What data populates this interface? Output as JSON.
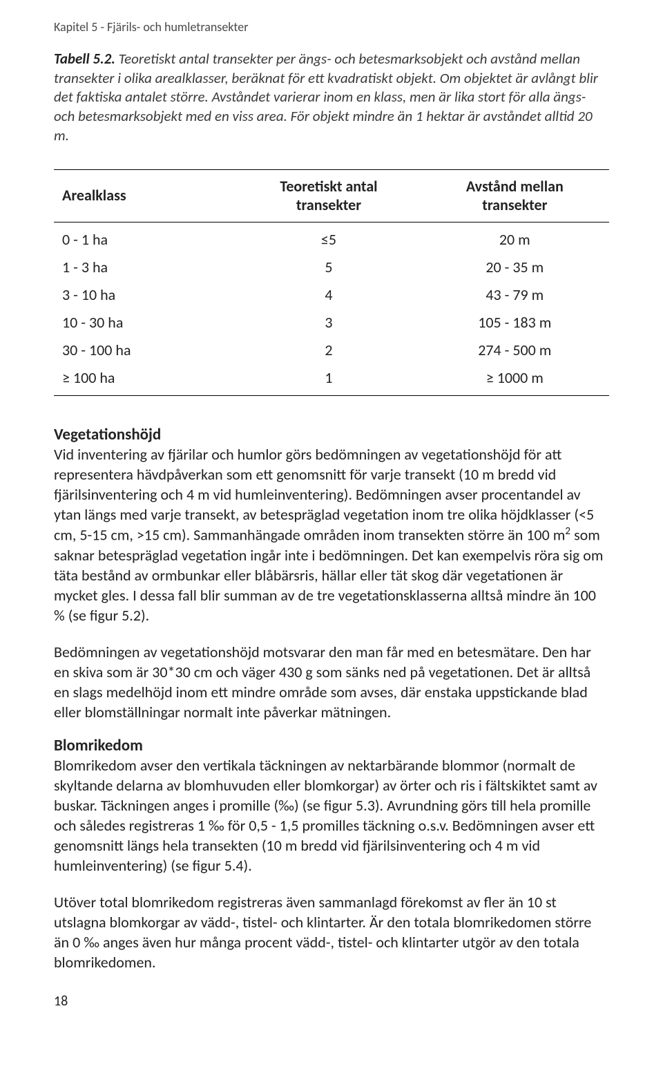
{
  "chapter_header": "Kapitel 5 -  Fjärils- och humletransekter",
  "table_label": "Tabell 5.2.",
  "table_caption": " Teoretiskt antal transekter per ängs- och betesmarksobjekt och avstånd mellan transekter i olika arealklasser, beräknat för ett kvadratiskt objekt. Om objektet är avlångt blir det faktiska antalet större. Avståndet varierar inom en klass, men är lika stort för alla ängs- och betesmarksobjekt med en viss area. För objekt mindre än 1 hektar är avståndet alltid 20 m.",
  "table": {
    "type": "table",
    "columns": [
      {
        "key": "arealklass",
        "header": "Arealklass",
        "align": "left"
      },
      {
        "key": "teoretiskt",
        "header": "Teoretiskt antal\ntransekter",
        "align": "center"
      },
      {
        "key": "avstand",
        "header": "Avstånd mellan\ntransekter",
        "align": "center"
      }
    ],
    "rows": [
      {
        "arealklass": "0 - 1 ha",
        "teoretiskt": "≤5",
        "avstand": "20 m"
      },
      {
        "arealklass": "1 - 3 ha",
        "teoretiskt": "5",
        "avstand": "20 - 35 m"
      },
      {
        "arealklass": "3 - 10 ha",
        "teoretiskt": "4",
        "avstand": "43 - 79 m"
      },
      {
        "arealklass": "10 - 30 ha",
        "teoretiskt": "3",
        "avstand": "105 - 183 m"
      },
      {
        "arealklass": "30 - 100 ha",
        "teoretiskt": "2",
        "avstand": "274 - 500 m"
      },
      {
        "arealklass": "≥ 100 ha",
        "teoretiskt": "1",
        "avstand": "≥ 1000 m"
      }
    ],
    "border_color": "#000000",
    "font_size": 22,
    "header_font_weight": "bold"
  },
  "sections": {
    "vegetation": {
      "heading": "Vegetationshöjd",
      "para1": "Vid inventering av fjärilar och humlor görs bedömningen av vegetationshöjd för att representera hävdpåverkan som ett genomsnitt för varje transekt (10 m bredd vid fjärilsinventering och 4 m vid humleinventering). Bedömningen avser procentandel av ytan längs med varje transekt, av betespräglad vegetation inom tre olika höjdklasser (<5 cm, 5-15 cm, >15 cm). Sammanhängade områden inom transekten större än 100 m² som saknar betespräglad vegetation ingår inte i bedömningen. Det kan exempelvis röra sig om täta bestånd av ormbunkar eller blåbärsris, hällar eller tät skog där vegetationen är mycket gles. I dessa fall blir summan av de tre vegetationsklasserna alltså mindre än 100 % (se figur 5.2).",
      "para2": "Bedömningen av vegetationshöjd motsvarar den man får med en betesmätare. Den har en skiva som är 30*30 cm och väger 430 g som sänks ned på vegetationen. Det är alltså en slags medelhöjd inom ett mindre område som avses, där enstaka uppstickande blad eller blomställningar normalt inte påverkar mätningen."
    },
    "blomrikedom": {
      "heading": "Blomrikedom",
      "para1": "Blomrikedom avser den vertikala täckningen av nektarbärande blommor (normalt de skyltande delarna av blomhuvuden eller blomkorgar) av örter och ris i fältskiktet samt av buskar. Täckningen anges i promille (‰) (se figur 5.3). Avrundning görs till hela promille och således registreras 1 ‰ för 0,5 - 1,5 promilles täckning o.s.v. Bedömningen avser ett genomsnitt längs hela transekten (10 m bredd vid fjärilsinventering och 4 m vid humleinventering) (se figur 5.4).",
      "para2": "Utöver total blomrikedom registreras även sammanlagd förekomst av fler än 10 st utslagna blomkorgar av vädd-, tistel- och klintarter. Är den totala blomrikedomen större än 0 ‰ anges även hur många procent vädd-, tistel- och klintarter utgör av den totala blomrikedomen."
    }
  },
  "page_number": "18",
  "colors": {
    "text": "#232323",
    "background": "#ffffff",
    "border": "#000000"
  }
}
